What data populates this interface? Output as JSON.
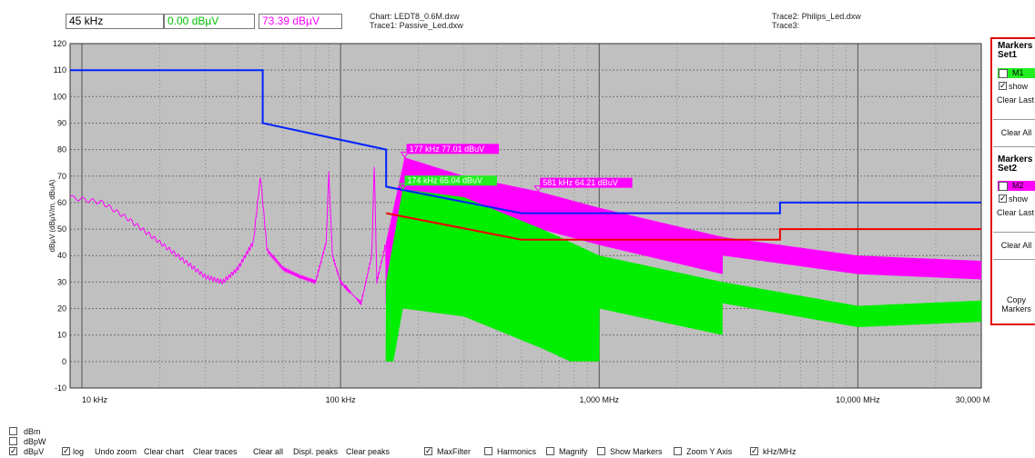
{
  "toolbar": {
    "frequency": "45 kHz",
    "level1": "0.00 dBµV",
    "level2": "73.39 dBµV",
    "chart_label": "Chart: LEDT8_0.6M.dxw",
    "trace1_label": "Trace1: Passive_Led.dxw",
    "trace2_label": "Trace2: Philips_Led.dxw",
    "trace3_label": "Trace3:"
  },
  "markers_panel": {
    "set1_title": "Markers Set1",
    "set1_marker": "M1",
    "set1_show": "show",
    "set1_clear_last": "Clear Last",
    "set1_clear_all": "Clear All",
    "set2_title": "Markers Set2",
    "set2_marker": "M2",
    "set2_show": "show",
    "set2_clear_last": "Clear Last",
    "set2_clear_all": "Clear All",
    "copy_markers": "Copy Markers"
  },
  "units": {
    "dbm": "dBm",
    "dbpw": "dBpW",
    "dbuv": "dBµV",
    "selected": "dBµV"
  },
  "bottom_bar": {
    "log": "log",
    "undo_zoom": "Undo zoom",
    "clear_chart": "Clear chart",
    "clear_traces": "Clear traces",
    "clear_all": "Clear all",
    "displ_peaks": "Displ. peaks",
    "clear_peaks": "Clear peaks",
    "max_filter": "MaxFilter",
    "harmonics": "Harmonics",
    "magnify": "Magnify",
    "show_markers": "Show Markers",
    "zoom_y": "Zoom Y Axis",
    "khz_mhz": "kHz/MHz"
  },
  "checks": {
    "dbm": false,
    "dbpw": false,
    "dbuv": true,
    "log": true,
    "max_filter": true,
    "harmonics": false,
    "magnify": false,
    "show_markers": false,
    "zoom_y": false,
    "khz_mhz": true,
    "set1_show": true,
    "set2_show": true
  },
  "colors": {
    "limit_qp": "#0022ff",
    "limit_avg": "#ee0000",
    "trace_magenta": "#ff00ff",
    "trace_green": "#00ee00",
    "plot_bg": "#c0c0c0",
    "marker_green": "#22ee22",
    "marker_magenta": "#ff00ff"
  },
  "chart_data": {
    "type": "line",
    "xscale": "log",
    "xlim": [
      9,
      30000
    ],
    "ylim": [
      -10,
      120
    ],
    "ylabel": "dBµV (dBµV/m, dBuA)",
    "x_tick_labels": [
      {
        "x": 10,
        "label": "10 kHz"
      },
      {
        "x": 100,
        "label": "100 kHz"
      },
      {
        "x": 1000,
        "label": "1,000 MHz"
      },
      {
        "x": 10000,
        "label": "10,000 MHz"
      },
      {
        "x": 30000,
        "label": "30,000 MHz"
      }
    ],
    "y_ticks": [
      -10,
      0,
      10,
      20,
      30,
      40,
      50,
      60,
      70,
      80,
      90,
      100,
      110,
      120
    ],
    "grid": true,
    "series": [
      {
        "name": "limit-qp",
        "color": "#0022ff",
        "points": [
          [
            9,
            110
          ],
          [
            50,
            110
          ],
          [
            50,
            90
          ],
          [
            150,
            80
          ],
          [
            150,
            66
          ],
          [
            500,
            56
          ],
          [
            5000,
            56
          ],
          [
            5000,
            60
          ],
          [
            30000,
            60
          ]
        ]
      },
      {
        "name": "limit-avg",
        "color": "#ee0000",
        "points": [
          [
            150,
            56
          ],
          [
            500,
            46
          ],
          [
            5000,
            46
          ],
          [
            5000,
            50
          ],
          [
            30000,
            50
          ]
        ]
      },
      {
        "name": "trace-magenta",
        "color": "#ff00ff",
        "envelope": [
          [
            9,
            62
          ],
          [
            12,
            60
          ],
          [
            15,
            54
          ],
          [
            20,
            45
          ],
          [
            30,
            32
          ],
          [
            35,
            30
          ],
          [
            40,
            35
          ],
          [
            46,
            45
          ],
          [
            49,
            70
          ],
          [
            52,
            42
          ],
          [
            60,
            35
          ],
          [
            70,
            32
          ],
          [
            80,
            30
          ],
          [
            88,
            45
          ],
          [
            90,
            72
          ],
          [
            93,
            40
          ],
          [
            100,
            30
          ],
          [
            120,
            22
          ],
          [
            132,
            40
          ],
          [
            135,
            75
          ],
          [
            138,
            30
          ],
          [
            150,
            45
          ],
          [
            177,
            77.01
          ],
          [
            300,
            70
          ],
          [
            581,
            64.21
          ],
          [
            1000,
            58
          ],
          [
            3000,
            47
          ],
          [
            10000,
            40
          ],
          [
            30000,
            38
          ]
        ]
      },
      {
        "name": "trace-green",
        "color": "#00ee00",
        "envelope": [
          [
            150,
            30
          ],
          [
            174,
            65.04
          ],
          [
            300,
            62
          ],
          [
            600,
            50
          ],
          [
            1000,
            40
          ],
          [
            3000,
            30
          ],
          [
            10000,
            21
          ],
          [
            30000,
            23
          ]
        ]
      }
    ],
    "markers": [
      {
        "set": "M2",
        "label": "177 kHz 77.01 dBuV",
        "x": 177,
        "y": 77.01,
        "color": "#ff00ff"
      },
      {
        "set": "M1",
        "label": "174 kHz 65.04 dBuV",
        "x": 174,
        "y": 65.04,
        "color": "#22ee22"
      },
      {
        "set": "M2",
        "label": "581 kHz 64.21 dBuV",
        "x": 581,
        "y": 64.21,
        "color": "#ff00ff"
      }
    ]
  }
}
